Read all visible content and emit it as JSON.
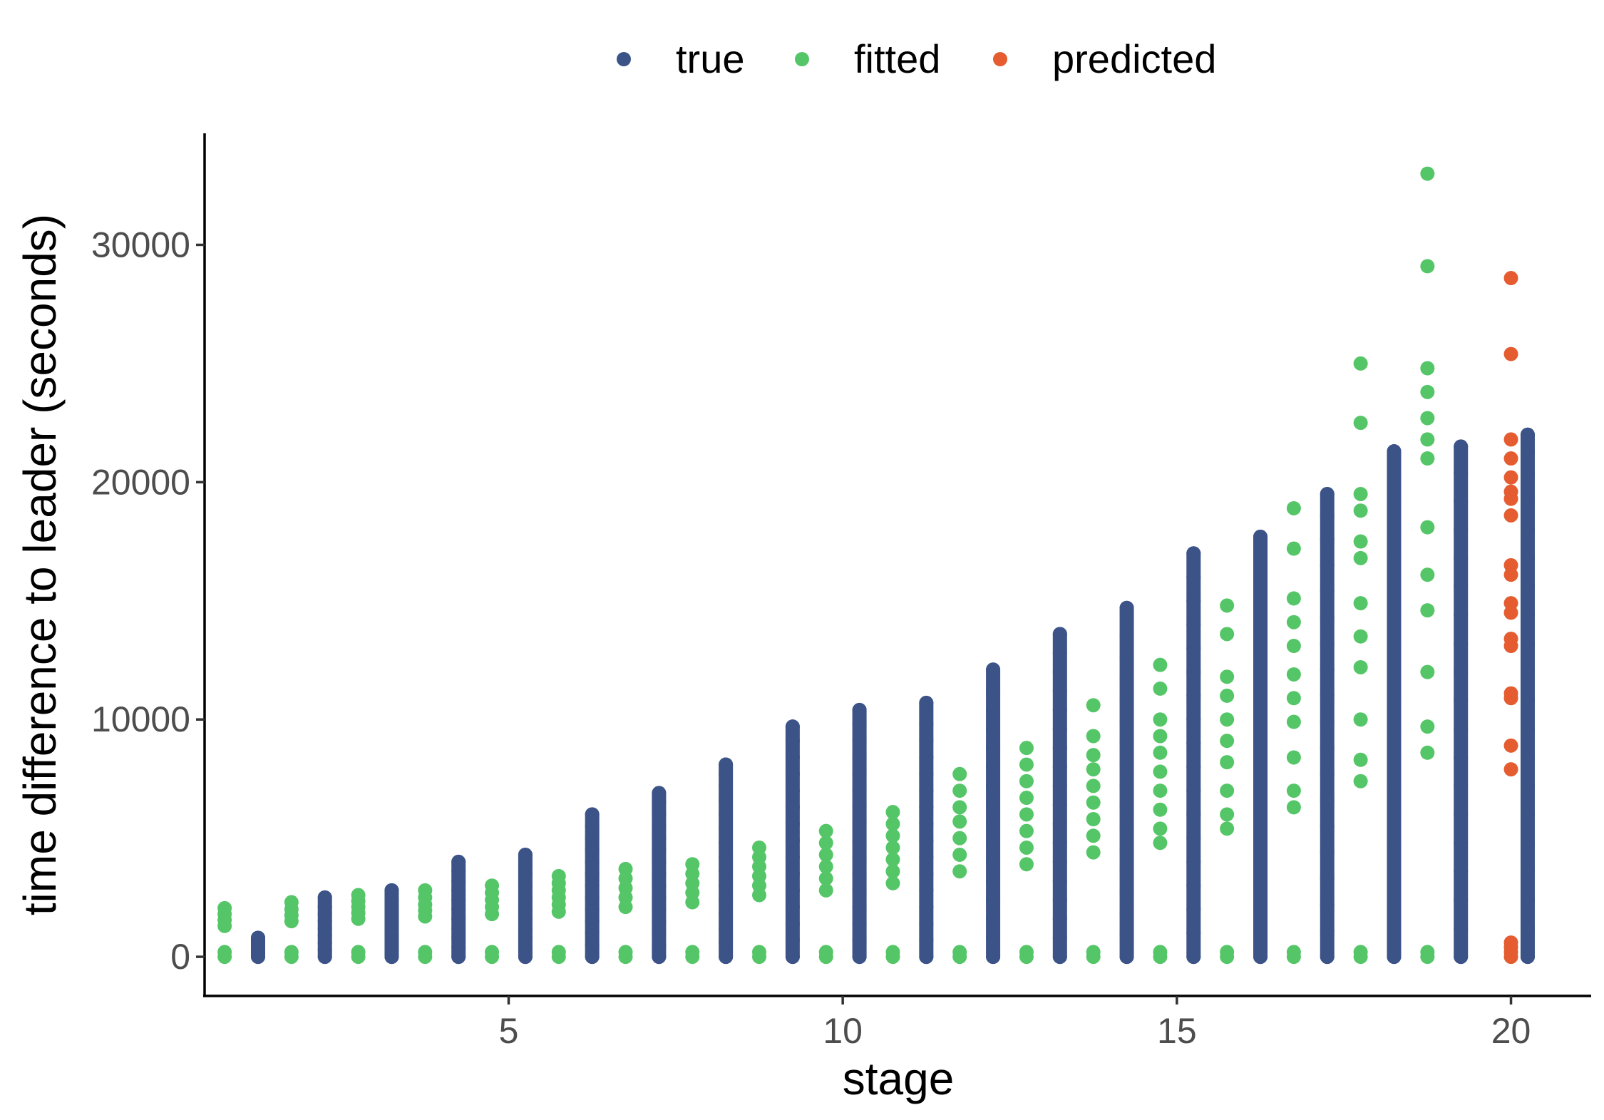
{
  "chart_data": {
    "type": "scatter",
    "title": "",
    "xlabel": "stage",
    "ylabel": "time difference to leader (seconds)",
    "xlim": [
      0.45,
      21.2
    ],
    "ylim": [
      -1650,
      34700
    ],
    "xticks": [
      5,
      10,
      15,
      20
    ],
    "yticks": [
      0,
      10000,
      20000,
      30000
    ],
    "xtick_labels": [
      "5",
      "10",
      "15",
      "20"
    ],
    "ytick_labels": [
      "0",
      "10000",
      "20000",
      "30000"
    ],
    "legend": {
      "placement": "top",
      "orientation": "horizontal"
    },
    "grid": false,
    "series": [
      {
        "name": "true",
        "color": "#3b5387",
        "x_offset": 0.25,
        "values_by_stage": [
          {
            "stage": 1,
            "min": 0,
            "max": 800,
            "points": [
              0,
              150,
              300,
              500,
              650,
              800
            ]
          },
          {
            "stage": 2,
            "min": 0,
            "max": 2500,
            "points": [
              0,
              300,
              600,
              900,
              1200,
              1500,
              1800,
              2100,
              2500
            ]
          },
          {
            "stage": 3,
            "min": 0,
            "max": 2800,
            "points": [
              0,
              300,
              600,
              900,
              1200,
              1500,
              1800,
              2100,
              2400,
              2800
            ]
          },
          {
            "stage": 4,
            "min": 0,
            "max": 4000,
            "points": [
              0,
              400,
              800,
              1200,
              1600,
              2000,
              2400,
              2800,
              3200,
              3600,
              4000
            ]
          },
          {
            "stage": 5,
            "min": 0,
            "max": 4300,
            "points": [
              0,
              400,
              800,
              1200,
              1600,
              2000,
              2500,
              3000,
              3500,
              3900,
              4300
            ]
          },
          {
            "stage": 6,
            "min": 0,
            "max": 6000,
            "points": [
              0,
              500,
              1000,
              1500,
              2000,
              2500,
              3000,
              3500,
              4000,
              4500,
              5000,
              5500,
              6000
            ]
          },
          {
            "stage": 7,
            "min": 0,
            "max": 6900,
            "points": [
              0,
              500,
              1000,
              1500,
              2000,
              2500,
              3000,
              3500,
              4000,
              4500,
              5000,
              5500,
              6000,
              6500,
              6900
            ]
          },
          {
            "stage": 8,
            "min": 0,
            "max": 8100,
            "points": [
              0,
              600,
              1200,
              1800,
              2400,
              3000,
              3600,
              4200,
              4800,
              5400,
              6000,
              6600,
              7200,
              7700,
              8100
            ]
          },
          {
            "stage": 9,
            "min": 0,
            "max": 9700,
            "points": [
              0,
              700,
              1400,
              2100,
              2800,
              3500,
              4200,
              4900,
              5600,
              6300,
              7000,
              7700,
              8400,
              9100,
              9700
            ]
          },
          {
            "stage": 10,
            "min": 0,
            "max": 10400,
            "points": [
              0,
              700,
              1400,
              2100,
              2800,
              3500,
              4200,
              4900,
              5600,
              6300,
              7000,
              7700,
              8400,
              9100,
              9800,
              10400
            ]
          },
          {
            "stage": 11,
            "min": 0,
            "max": 10700,
            "points": [
              0,
              700,
              1400,
              2100,
              2800,
              3500,
              4200,
              4900,
              5600,
              6300,
              7000,
              7700,
              8400,
              9100,
              9800,
              10700
            ]
          },
          {
            "stage": 12,
            "min": 0,
            "max": 12100,
            "points": [
              0,
              800,
              1600,
              2400,
              3200,
              4000,
              4800,
              5600,
              6400,
              7200,
              8000,
              8800,
              9600,
              10400,
              11200,
              12100
            ]
          },
          {
            "stage": 13,
            "min": 0,
            "max": 13600,
            "points": [
              0,
              800,
              1600,
              2400,
              3200,
              4000,
              4800,
              5600,
              6400,
              7200,
              8000,
              8800,
              9600,
              10400,
              11200,
              12000,
              12800,
              13600
            ]
          },
          {
            "stage": 14,
            "min": 0,
            "max": 14700,
            "points": [
              0,
              900,
              1800,
              2700,
              3600,
              4500,
              5400,
              6300,
              7200,
              8100,
              9000,
              9900,
              10800,
              11700,
              12600,
              13500,
              14700
            ]
          },
          {
            "stage": 15,
            "min": 0,
            "max": 17000,
            "points": [
              0,
              1000,
              2000,
              3000,
              4000,
              5000,
              6000,
              7000,
              8000,
              9000,
              10000,
              11000,
              12000,
              13000,
              14000,
              15000,
              16000,
              17000
            ]
          },
          {
            "stage": 16,
            "min": 0,
            "max": 17700,
            "points": [
              0,
              1000,
              2000,
              3000,
              4000,
              5000,
              6000,
              7000,
              8000,
              9000,
              10000,
              11000,
              12000,
              13000,
              14000,
              15000,
              16000,
              17000,
              17700
            ]
          },
          {
            "stage": 17,
            "min": 0,
            "max": 19500,
            "points": [
              0,
              1100,
              2200,
              3300,
              4400,
              5500,
              6600,
              7700,
              8800,
              9900,
              11000,
              12100,
              13200,
              14300,
              15400,
              16500,
              17600,
              18600,
              19500
            ]
          },
          {
            "stage": 18,
            "min": 0,
            "max": 21300,
            "points": [
              0,
              1200,
              2400,
              3600,
              4800,
              6000,
              7200,
              8400,
              9600,
              10800,
              12000,
              13200,
              14400,
              15600,
              16800,
              18000,
              19200,
              20300,
              21300
            ]
          },
          {
            "stage": 19,
            "min": 0,
            "max": 21500,
            "points": [
              0,
              1200,
              2400,
              3600,
              4800,
              6000,
              7200,
              8400,
              9600,
              10800,
              12000,
              13200,
              14400,
              15600,
              16800,
              18000,
              19200,
              20400,
              21500
            ]
          },
          {
            "stage": 20,
            "min": 0,
            "max": 22000,
            "points": [
              0,
              1200,
              2400,
              3600,
              4800,
              6000,
              7200,
              8400,
              9600,
              10800,
              12000,
              13200,
              14400,
              15600,
              16800,
              18000,
              19200,
              20400,
              21300,
              22000
            ]
          }
        ]
      },
      {
        "name": "fitted",
        "color": "#55c667",
        "x_offset": -0.25,
        "values_by_stage": [
          {
            "stage": 1,
            "points": [
              0,
              200,
              1300,
              1550,
              1800,
              2050
            ]
          },
          {
            "stage": 2,
            "points": [
              0,
              200,
              1500,
              1750,
              2000,
              2300
            ]
          },
          {
            "stage": 3,
            "points": [
              0,
              200,
              1600,
              1850,
              2100,
              2350,
              2600
            ]
          },
          {
            "stage": 4,
            "points": [
              0,
              200,
              1700,
              1950,
              2200,
              2500,
              2800
            ]
          },
          {
            "stage": 5,
            "points": [
              0,
              200,
              1800,
              2100,
              2400,
              2700,
              3000
            ]
          },
          {
            "stage": 6,
            "points": [
              0,
              200,
              1900,
              2200,
              2500,
              2800,
              3100,
              3400
            ]
          },
          {
            "stage": 7,
            "points": [
              0,
              200,
              2100,
              2500,
              2900,
              3300,
              3700
            ]
          },
          {
            "stage": 8,
            "points": [
              0,
              200,
              2300,
              2700,
              3100,
              3500,
              3900
            ]
          },
          {
            "stage": 9,
            "points": [
              0,
              200,
              2600,
              3000,
              3400,
              3800,
              4200,
              4600
            ]
          },
          {
            "stage": 10,
            "points": [
              0,
              200,
              2800,
              3300,
              3800,
              4300,
              4800,
              5300
            ]
          },
          {
            "stage": 11,
            "points": [
              0,
              200,
              3100,
              3600,
              4100,
              4600,
              5100,
              5600,
              6100
            ]
          },
          {
            "stage": 12,
            "points": [
              0,
              200,
              3600,
              4300,
              5000,
              5700,
              6300,
              7000,
              7700
            ]
          },
          {
            "stage": 13,
            "points": [
              0,
              200,
              3900,
              4600,
              5300,
              6000,
              6700,
              7400,
              8100,
              8800
            ]
          },
          {
            "stage": 14,
            "points": [
              0,
              200,
              4400,
              5100,
              5800,
              6500,
              7200,
              7900,
              8500,
              9300,
              10600
            ]
          },
          {
            "stage": 15,
            "points": [
              0,
              200,
              4800,
              5400,
              6200,
              7000,
              7800,
              8600,
              9300,
              10000,
              11300,
              12300
            ]
          },
          {
            "stage": 16,
            "points": [
              0,
              200,
              5400,
              6000,
              7000,
              8200,
              9100,
              10000,
              11000,
              11800,
              13600,
              14800
            ]
          },
          {
            "stage": 17,
            "points": [
              0,
              200,
              6300,
              7000,
              8400,
              9900,
              10900,
              11900,
              13100,
              14100,
              15100,
              17200,
              18900
            ]
          },
          {
            "stage": 18,
            "points": [
              0,
              200,
              7400,
              8300,
              10000,
              12200,
              13500,
              14900,
              16800,
              17500,
              18800,
              19500,
              22500,
              25000
            ]
          },
          {
            "stage": 19,
            "points": [
              0,
              200,
              8600,
              9700,
              12000,
              14600,
              16100,
              18100,
              21000,
              21800,
              22700,
              23800,
              24800,
              29100,
              33000
            ]
          }
        ]
      },
      {
        "name": "predicted",
        "color": "#e55c30",
        "x_offset": 0,
        "values_by_stage": [
          {
            "stage": 20,
            "points": [
              0,
              200,
              400,
              600,
              7900,
              8900,
              10900,
              11100,
              13100,
              13400,
              14500,
              14900,
              16100,
              16500,
              18600,
              19300,
              19600,
              20200,
              21000,
              21800,
              25400,
              28600
            ]
          }
        ]
      }
    ]
  }
}
